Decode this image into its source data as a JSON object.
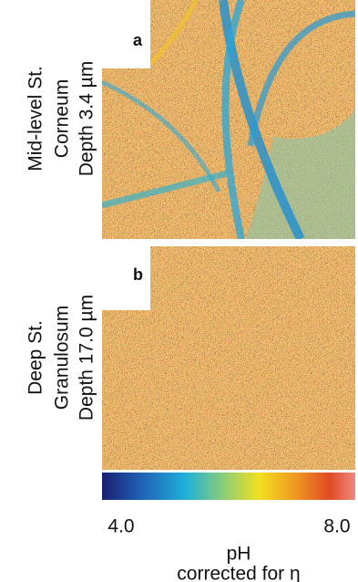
{
  "panels": [
    {
      "label": "a",
      "caption": [
        "Mid-level St.",
        "Corneum",
        "Depth 3.4 µm"
      ]
    },
    {
      "label": "b",
      "caption": [
        "Deep St.",
        "Granulosum",
        "Depth 17.0 µm"
      ]
    }
  ],
  "colorbar": {
    "min_label": "4.0",
    "max_label": "8.0",
    "title": "pH",
    "subtitle": "corrected for η"
  }
}
